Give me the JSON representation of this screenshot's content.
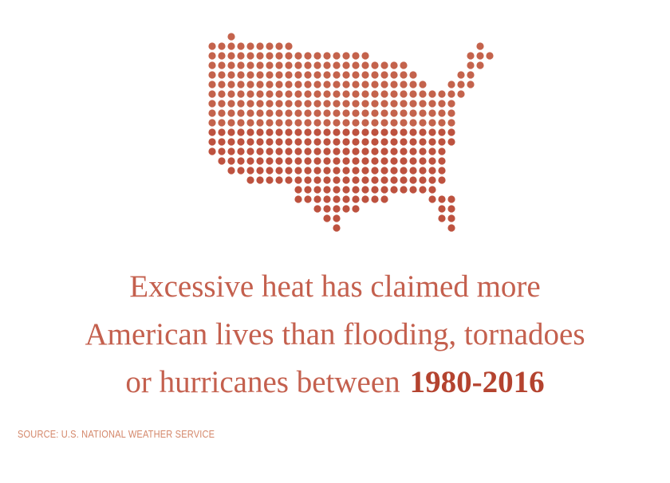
{
  "headline": {
    "lines": [
      "Excessive heat has claimed more",
      "American lives than flooding, tornadoes",
      "or hurricanes between"
    ],
    "highlight": "1980-2016"
  },
  "source": "SOURCE: U.S. NATIONAL WEATHER SERVICE"
}
